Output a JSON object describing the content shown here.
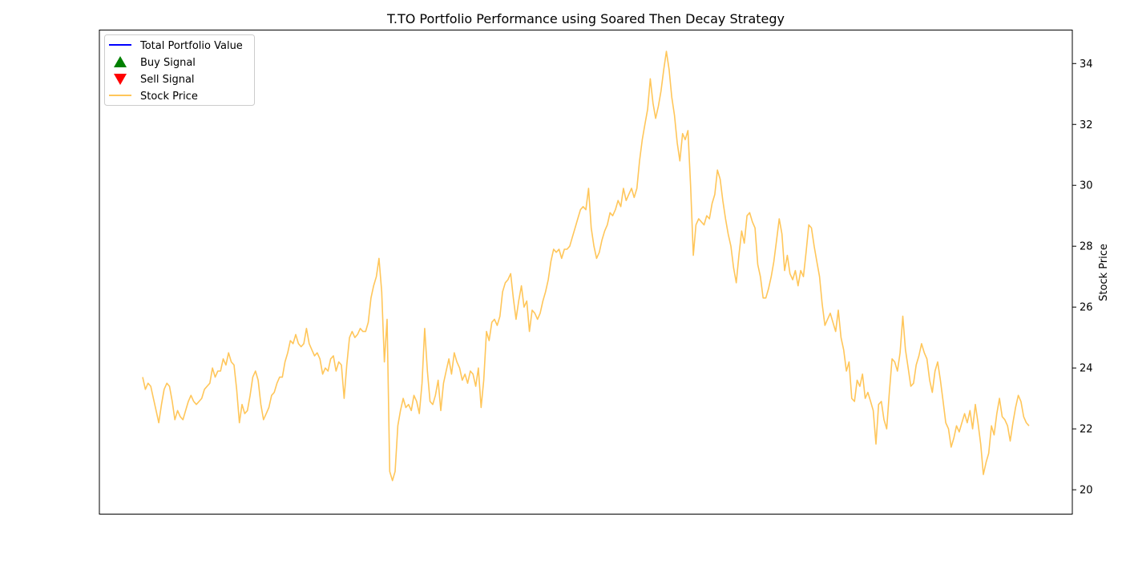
{
  "chart_data": {
    "type": "line",
    "title": "T.TO Portfolio Performance using Soared Then Decay Strategy",
    "xlabel": "",
    "ylabel": "Stock Price",
    "x_ticks_visible": false,
    "ylim": [
      19.2,
      35.1
    ],
    "y_axis_side": "right",
    "y_ticks": [
      "20",
      "22",
      "24",
      "26",
      "28",
      "30",
      "32",
      "34"
    ],
    "legend_position": "top-left",
    "legend": [
      {
        "label": "Total Portfolio Value",
        "marker": "line",
        "color": "#0000ff"
      },
      {
        "label": "Buy Signal",
        "marker": "triangle-up",
        "color": "#008000"
      },
      {
        "label": "Sell Signal",
        "marker": "triangle-down",
        "color": "#ff0000"
      },
      {
        "label": "Stock Price",
        "marker": "line",
        "color": "#ffc65a"
      }
    ],
    "series": [
      {
        "name": "Stock Price",
        "color": "#ffc65a",
        "values": [
          23.7,
          23.3,
          23.5,
          23.4,
          23.0,
          22.6,
          22.2,
          22.8,
          23.3,
          23.5,
          23.4,
          22.9,
          22.3,
          22.6,
          22.4,
          22.3,
          22.6,
          22.9,
          23.1,
          22.9,
          22.8,
          22.9,
          23.0,
          23.3,
          23.4,
          23.5,
          24.0,
          23.7,
          23.9,
          23.9,
          24.3,
          24.1,
          24.5,
          24.2,
          24.1,
          23.3,
          22.2,
          22.8,
          22.5,
          22.6,
          23.1,
          23.7,
          23.9,
          23.6,
          22.8,
          22.3,
          22.5,
          22.7,
          23.1,
          23.2,
          23.5,
          23.7,
          23.7,
          24.2,
          24.5,
          24.9,
          24.8,
          25.1,
          24.8,
          24.7,
          24.8,
          25.3,
          24.8,
          24.6,
          24.4,
          24.5,
          24.3,
          23.8,
          24.0,
          23.9,
          24.3,
          24.4,
          23.9,
          24.2,
          24.1,
          23.0,
          24.1,
          25.0,
          25.2,
          25.0,
          25.1,
          25.3,
          25.2,
          25.2,
          25.5,
          26.3,
          26.7,
          27.0,
          27.6,
          26.5,
          24.2,
          25.6,
          20.6,
          20.3,
          20.6,
          22.1,
          22.6,
          23.0,
          22.7,
          22.8,
          22.6,
          23.1,
          22.9,
          22.5,
          23.5,
          25.3,
          23.9,
          22.9,
          22.8,
          23.1,
          23.6,
          22.6,
          23.5,
          23.9,
          24.3,
          23.8,
          24.5,
          24.2,
          24.0,
          23.6,
          23.8,
          23.5,
          23.9,
          23.8,
          23.4,
          24.0,
          22.7,
          23.6,
          25.2,
          24.9,
          25.5,
          25.6,
          25.4,
          25.7,
          26.5,
          26.8,
          26.9,
          27.1,
          26.3,
          25.6,
          26.2,
          26.7,
          26.0,
          26.2,
          25.2,
          25.9,
          25.8,
          25.6,
          25.8,
          26.2,
          26.5,
          26.9,
          27.5,
          27.9,
          27.8,
          27.9,
          27.6,
          27.9,
          27.9,
          28.0,
          28.3,
          28.6,
          28.9,
          29.2,
          29.3,
          29.2,
          29.9,
          28.6,
          28.0,
          27.6,
          27.8,
          28.2,
          28.5,
          28.7,
          29.1,
          29.0,
          29.2,
          29.5,
          29.3,
          29.9,
          29.5,
          29.7,
          29.9,
          29.6,
          29.9,
          30.8,
          31.5,
          32.0,
          32.5,
          33.5,
          32.7,
          32.2,
          32.6,
          33.1,
          33.8,
          34.4,
          33.8,
          32.9,
          32.3,
          31.4,
          30.8,
          31.7,
          31.5,
          31.8,
          30.0,
          27.7,
          28.7,
          28.9,
          28.8,
          28.7,
          29.0,
          28.9,
          29.4,
          29.7,
          30.5,
          30.2,
          29.5,
          28.9,
          28.4,
          28.0,
          27.3,
          26.8,
          27.7,
          28.5,
          28.1,
          29.0,
          29.1,
          28.8,
          28.6,
          27.4,
          27.0,
          26.3,
          26.3,
          26.6,
          27.0,
          27.5,
          28.2,
          28.9,
          28.4,
          27.2,
          27.7,
          27.1,
          26.9,
          27.2,
          26.7,
          27.2,
          27.0,
          27.8,
          28.7,
          28.6,
          28.0,
          27.5,
          27.0,
          26.1,
          25.4,
          25.6,
          25.8,
          25.5,
          25.2,
          25.9,
          25.0,
          24.6,
          23.9,
          24.2,
          23.0,
          22.9,
          23.6,
          23.4,
          23.8,
          23.0,
          23.2,
          22.9,
          22.6,
          21.5,
          22.8,
          22.9,
          22.3,
          22.0,
          23.2,
          24.3,
          24.2,
          23.9,
          24.5,
          25.7,
          24.6,
          24.0,
          23.4,
          23.5,
          24.1,
          24.4,
          24.8,
          24.5,
          24.3,
          23.6,
          23.2,
          23.9,
          24.2,
          23.6,
          22.9,
          22.2,
          22.0,
          21.4,
          21.7,
          22.1,
          21.9,
          22.2,
          22.5,
          22.2,
          22.6,
          22.0,
          22.8,
          22.2,
          21.5,
          20.5,
          20.9,
          21.2,
          22.1,
          21.8,
          22.5,
          23.0,
          22.4,
          22.3,
          22.1,
          21.6,
          22.2,
          22.7,
          23.1,
          22.9,
          22.4,
          22.2,
          22.1
        ]
      }
    ]
  }
}
